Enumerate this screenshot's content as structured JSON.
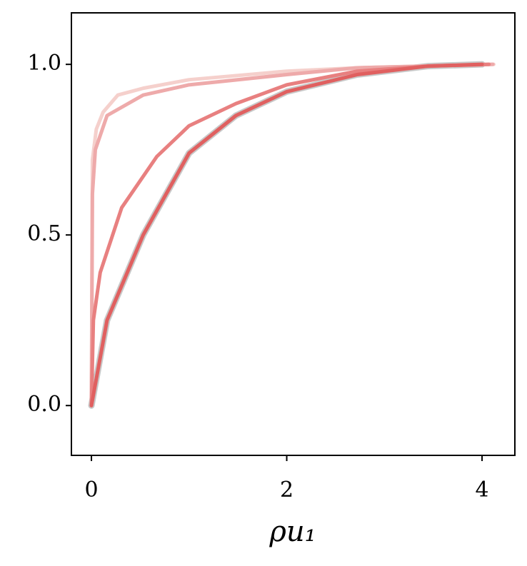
{
  "chart_data": {
    "type": "line",
    "x_label": "ρu₁",
    "xlim": [
      -0.205,
      4.336
    ],
    "ylim": [
      -0.146,
      1.151
    ],
    "xticks": [
      0,
      2,
      4
    ],
    "yticks": [
      {
        "value": 0,
        "label": "0.0"
      },
      {
        "value": 0.5,
        "label": "0.5"
      },
      {
        "value": 1,
        "label": "1.0"
      }
    ],
    "series": [
      {
        "color": "#c8c8c8",
        "width": 9,
        "x": [
          0,
          0.16,
          0.53,
          1.0,
          1.48,
          2.0,
          2.72,
          3.45,
          4.0
        ],
        "values": [
          0,
          0.25,
          0.5,
          0.74,
          0.85,
          0.92,
          0.97,
          0.995,
          1.0
        ]
      },
      {
        "color": "#f5d0cc",
        "width": 5,
        "x": [
          0,
          0.01,
          0.05,
          0.12,
          0.27,
          0.53,
          1.0,
          2.0,
          2.72,
          4.12
        ],
        "values": [
          0,
          0.72,
          0.81,
          0.86,
          0.91,
          0.93,
          0.955,
          0.98,
          0.99,
          1.0
        ]
      },
      {
        "color": "#eeaaaa",
        "width": 5,
        "x": [
          0,
          0.01,
          0.04,
          0.16,
          0.53,
          1.0,
          2.0,
          2.72,
          4.11
        ],
        "values": [
          0,
          0.62,
          0.75,
          0.85,
          0.91,
          0.94,
          0.97,
          0.99,
          1.0
        ]
      },
      {
        "color": "#e88080",
        "width": 5,
        "x": [
          0,
          0.02,
          0.09,
          0.31,
          0.67,
          1.0,
          1.48,
          2.0,
          2.72,
          3.45,
          4.07
        ],
        "values": [
          0,
          0.25,
          0.39,
          0.58,
          0.73,
          0.82,
          0.885,
          0.94,
          0.98,
          0.995,
          1.0
        ]
      },
      {
        "color": "#e06060",
        "width": 5,
        "x": [
          0,
          0.16,
          0.53,
          1.0,
          1.48,
          2.0,
          2.72,
          3.45,
          4.0
        ],
        "values": [
          0,
          0.25,
          0.5,
          0.74,
          0.85,
          0.92,
          0.97,
          0.995,
          1.0
        ]
      }
    ]
  }
}
